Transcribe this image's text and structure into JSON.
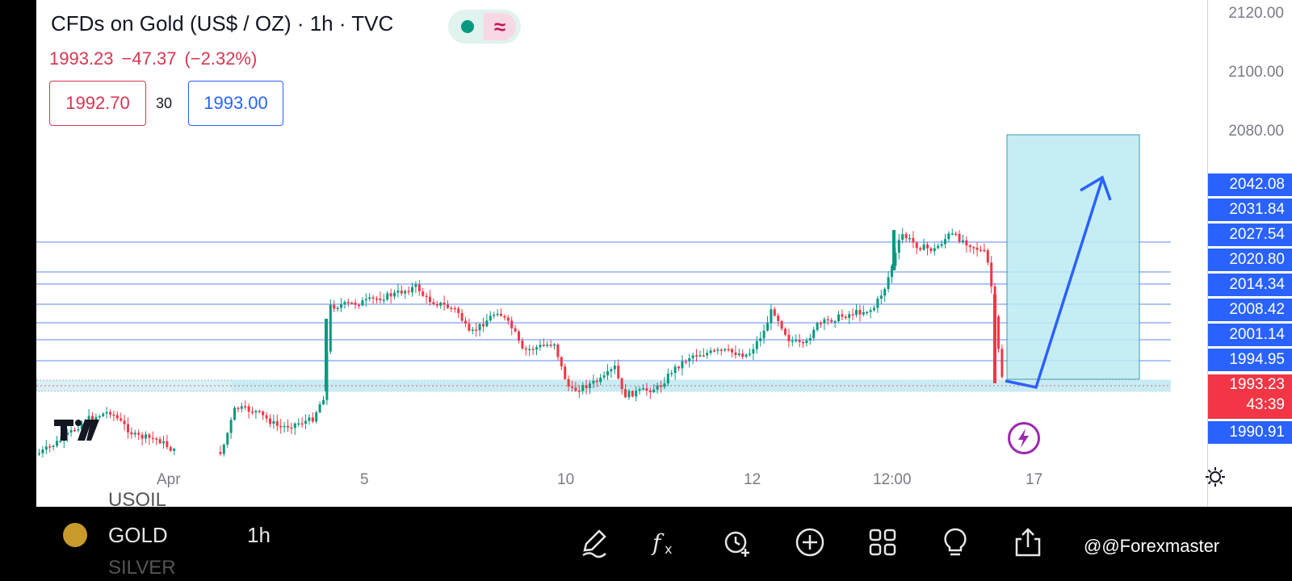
{
  "header": {
    "title": "CFDs on Gold (US$ / OZ) · 1h · TVC",
    "last_price": "1993.23",
    "change": "−47.37",
    "change_pct": "(−2.32%)",
    "bid": "1992.70",
    "spread": "30",
    "ask": "1993.00"
  },
  "price_axis": {
    "labels": [
      "2120.00",
      "2100.00",
      "2080.00"
    ],
    "tags": [
      "2042.08",
      "2031.84",
      "2027.54",
      "2020.80",
      "2014.34",
      "2008.42",
      "2001.14",
      "1994.95"
    ],
    "current_price": "1993.23",
    "countdown": "43:39",
    "bottom_tag": "1990.91"
  },
  "time_axis": [
    "Apr",
    "5",
    "10",
    "12",
    "12:00",
    "17"
  ],
  "toolbar": {
    "ghost_above": "USOIL",
    "symbol": "GOLD",
    "timeframe": "1h",
    "ghost_below": "SILVER",
    "watermark": "@@Forexmaster",
    "icons": [
      "pencil-icon",
      "fx-icon",
      "alarm-icon",
      "plus-circle-icon",
      "grid-icon",
      "bulb-icon",
      "share-icon"
    ]
  },
  "colors": {
    "up": "#089981",
    "down": "#f23645",
    "accent": "#2962ff",
    "zone": "#bdebf2",
    "bolt": "#9c27b0"
  }
}
